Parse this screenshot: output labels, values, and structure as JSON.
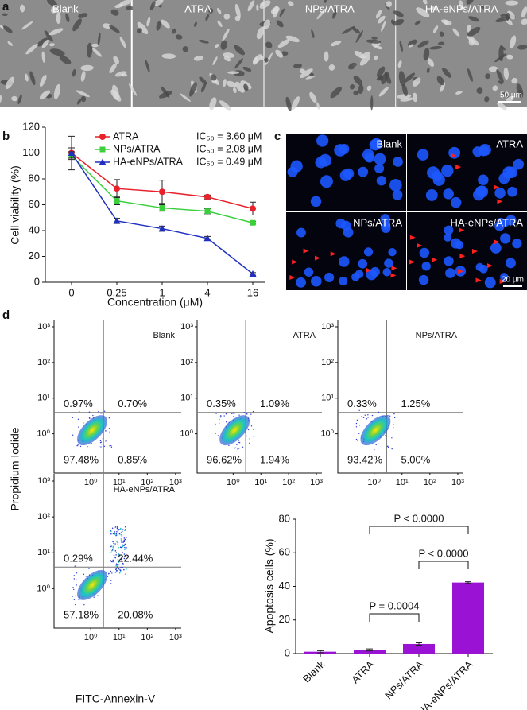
{
  "panel_labels": [
    "a",
    "b",
    "c",
    "d"
  ],
  "micrographs_a": {
    "labels": [
      "Blank",
      "ATRA",
      "NPs/ATRA",
      "HA-eNPs/ATRA"
    ],
    "scale_bar": "50 μm"
  },
  "micrographs_c": {
    "labels": [
      "Blank",
      "ATRA",
      "NPs/ATRA",
      "HA-eNPs/ATRA"
    ],
    "scale_bar": "20 μm"
  },
  "flow_cytometry": {
    "y_label": "Propidium Iodide",
    "x_label": "FITC-Annexin-V",
    "xlim": [
      -1.3,
      3.2
    ],
    "ylim": [
      -1.1,
      3.2
    ],
    "ticks": [
      {
        "value": 0,
        "label": "10⁰"
      },
      {
        "value": 1,
        "label": "10¹"
      },
      {
        "value": 2,
        "label": "10²"
      },
      {
        "value": 3,
        "label": "10³"
      }
    ],
    "panels": [
      {
        "name": "Blank",
        "quadrants": [
          "0.97%",
          "0.70%",
          "97.48%",
          "0.85%"
        ]
      },
      {
        "name": "ATRA",
        "quadrants": [
          "0.35%",
          "1.09%",
          "96.62%",
          "1.94%"
        ]
      },
      {
        "name": "NPs/ATRA",
        "quadrants": [
          "0.33%",
          "1.25%",
          "93.42%",
          "5.00%"
        ]
      },
      {
        "name": "HA-eNPs/ATRA",
        "quadrants": [
          "0.29%",
          "22.44%",
          "57.18%",
          "20.08%"
        ]
      }
    ]
  },
  "chart_data": [
    {
      "type": "line",
      "xlabel": "Concentration (μM)",
      "ylabel": "Cell viability (%)",
      "categories": [
        "0",
        "0.25",
        "1",
        "4",
        "16"
      ],
      "ylim": [
        0,
        120
      ],
      "yticks": [
        0,
        20,
        40,
        60,
        80,
        100,
        120
      ],
      "series": [
        {
          "name": "ATRA",
          "color": "#e8212a",
          "marker": "circle",
          "ic50_label": "IC₅₀ = 3.60 μM",
          "values": [
            100,
            72.5,
            70,
            66,
            57
          ],
          "errors": [
            13,
            7,
            9,
            1.5,
            5
          ]
        },
        {
          "name": "NPs/ATRA",
          "color": "#3ccf3c",
          "marker": "square",
          "ic50_label": "IC₅₀ = 2.08 μM",
          "values": [
            98,
            63,
            57.5,
            55,
            46
          ],
          "errors": [
            3,
            3,
            2.5,
            2,
            1
          ]
        },
        {
          "name": "HA-eNPs/ATRA",
          "color": "#1f2fc0",
          "marker": "triangle",
          "ic50_label": "IC₅₀ = 0.49 μM",
          "values": [
            100,
            47.5,
            41.5,
            34,
            6.5
          ],
          "errors": [
            4,
            2,
            2,
            1.5,
            1
          ]
        }
      ]
    },
    {
      "type": "bar",
      "ylabel": "Apoptosis cells (%)",
      "color": "#9a12d4",
      "categories": [
        "Blank",
        "ATRA",
        "NPs/ATRA",
        "HA-eNPs/ATRA"
      ],
      "values": [
        1.1,
        2.2,
        5.7,
        42.3
      ],
      "errors": [
        0.6,
        0.6,
        0.7,
        0.5
      ],
      "ylim": [
        0,
        80
      ],
      "yticks": [
        0,
        20,
        40,
        60,
        80
      ],
      "annotations": [
        "P < 0.0000",
        "P < 0.0000",
        "P = 0.0004"
      ]
    }
  ]
}
